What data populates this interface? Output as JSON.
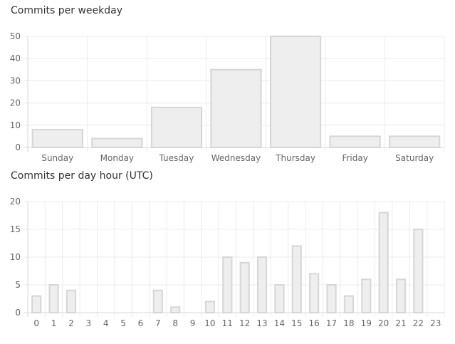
{
  "chart_data": [
    {
      "type": "bar",
      "title": "Commits per weekday",
      "categories": [
        "Sunday",
        "Monday",
        "Tuesday",
        "Wednesday",
        "Thursday",
        "Friday",
        "Saturday"
      ],
      "values": [
        8,
        4,
        18,
        35,
        50,
        5,
        5
      ],
      "ylim": [
        0,
        50
      ],
      "yticks": [
        "0",
        "10",
        "20",
        "30",
        "40",
        "50"
      ],
      "grid": true,
      "colors": {
        "fill": "#eeeeee",
        "stroke": "#d6d6d6"
      }
    },
    {
      "type": "bar",
      "title": "Commits per day hour (UTC)",
      "categories": [
        "0",
        "1",
        "2",
        "3",
        "4",
        "5",
        "6",
        "7",
        "8",
        "9",
        "10",
        "11",
        "12",
        "13",
        "14",
        "15",
        "16",
        "17",
        "18",
        "19",
        "20",
        "21",
        "22",
        "23"
      ],
      "values": [
        3,
        5,
        4,
        0,
        0,
        0,
        0,
        4,
        1,
        0,
        2,
        10,
        9,
        10,
        5,
        12,
        7,
        5,
        3,
        6,
        18,
        6,
        15,
        0
      ],
      "ylim": [
        0,
        20
      ],
      "yticks": [
        "0",
        "5",
        "10",
        "15",
        "20"
      ],
      "grid": true,
      "colors": {
        "fill": "#eeeeee",
        "stroke": "#d6d6d6"
      }
    }
  ]
}
